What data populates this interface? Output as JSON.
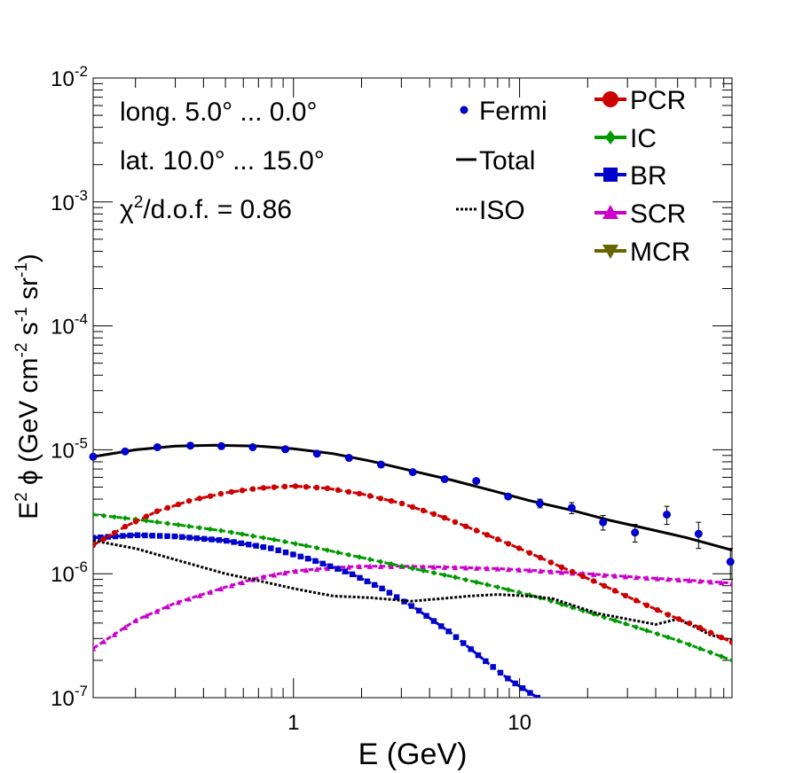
{
  "chart_data": {
    "type": "line",
    "xscale": "log",
    "yscale": "log",
    "xlim": [
      0.13,
      87
    ],
    "ylim": [
      1e-07,
      0.01
    ],
    "xlabel": "E (GeV)",
    "ylabel_base": "E",
    "ylabel_sup1": "2",
    "ylabel_mid": " ϕ (GeV cm",
    "ylabel_sup2": "-2",
    "ylabel_mid2": " s",
    "ylabel_sup3": "-1",
    "ylabel_mid3": " sr",
    "ylabel_sup4": "-1",
    "ylabel_end": ")",
    "x_tick_labels": [
      "1",
      "10"
    ],
    "x_tick_values": [
      1,
      10
    ],
    "y_tick_exponents": [
      "-7",
      "-6",
      "-5",
      "-4",
      "-3",
      "-2"
    ],
    "y_tick_base": "10",
    "y_tick_values": [
      1e-07,
      1e-06,
      1e-05,
      0.0001,
      0.001,
      0.01
    ],
    "annotations": {
      "line1": "long. 5.0° ... 0.0°",
      "line2": "lat. 10.0° ... 15.0°",
      "chi_prefix": "χ",
      "chi_sup": "2",
      "chi_rest": "/d.o.f. = 0.86"
    },
    "legend_left": [
      {
        "label": "Fermi",
        "style": "dot",
        "color": "#0000cc"
      },
      {
        "label": "Total",
        "style": "solid",
        "color": "#000000"
      },
      {
        "label": "ISO",
        "style": "dotted",
        "color": "#000000"
      }
    ],
    "legend_right": [
      {
        "label": "PCR",
        "marker": "circle",
        "color": "#cc0000"
      },
      {
        "label": "IC",
        "marker": "diamond",
        "color": "#009900"
      },
      {
        "label": "BR",
        "marker": "square",
        "color": "#0000cc"
      },
      {
        "label": "SCR",
        "marker": "triangle-up",
        "color": "#cc00cc"
      },
      {
        "label": "MCR",
        "marker": "triangle-down",
        "color": "#666600"
      }
    ],
    "fermi": {
      "x": [
        0.13,
        0.18,
        0.25,
        0.35,
        0.48,
        0.66,
        0.92,
        1.27,
        1.76,
        2.44,
        3.37,
        4.66,
        6.43,
        8.9,
        12.3,
        17.0,
        23.4,
        32.4,
        44.8,
        61.9,
        85.6
      ],
      "y": [
        8.8e-06,
        9.7e-06,
        1.05e-05,
        1.08e-05,
        1.07e-05,
        1.05e-05,
        1.01e-05,
        9.3e-06,
        8.6e-06,
        7.6e-06,
        6.6e-06,
        5.8e-06,
        5.6e-06,
        4.2e-06,
        3.7e-06,
        3.4e-06,
        2.6e-06,
        2.15e-06,
        3e-06,
        2.1e-06,
        1.25e-06
      ],
      "err": [
        3e-07,
        3e-07,
        3e-07,
        3e-07,
        3e-07,
        3e-07,
        3e-07,
        3e-07,
        2e-07,
        2e-07,
        2e-07,
        2e-07,
        2e-07,
        2e-07,
        3e-07,
        3.5e-07,
        3.5e-07,
        3.5e-07,
        5e-07,
        5e-07,
        3.5e-07
      ]
    },
    "series": [
      {
        "name": "Total",
        "color": "#000000",
        "style": "solid",
        "marker": "none",
        "x": [
          0.13,
          0.2,
          0.3,
          0.45,
          0.7,
          1.0,
          1.5,
          2.2,
          3.3,
          5.0,
          7.5,
          11,
          17,
          25,
          37,
          55,
          87
        ],
        "y": [
          8.8e-06,
          1e-05,
          1.07e-05,
          1.09e-05,
          1.07e-05,
          1.02e-05,
          9.3e-06,
          8.1e-06,
          6.8e-06,
          5.7e-06,
          4.7e-06,
          3.9e-06,
          3.25e-06,
          2.7e-06,
          2.3e-06,
          1.95e-06,
          1.55e-06
        ]
      },
      {
        "name": "PCR",
        "color": "#cc0000",
        "style": "dashed",
        "marker": "circle",
        "x": [
          0.13,
          0.18,
          0.25,
          0.35,
          0.5,
          0.7,
          1.0,
          1.4,
          2.0,
          3.0,
          4.5,
          7.0,
          10,
          15,
          22,
          32,
          45,
          60,
          87
        ],
        "y": [
          1.7e-06,
          2.4e-06,
          3.2e-06,
          3.9e-06,
          4.5e-06,
          4.9e-06,
          5.1e-06,
          4.9e-06,
          4.4e-06,
          3.7e-06,
          2.9e-06,
          2.1e-06,
          1.6e-06,
          1.15e-06,
          8.5e-07,
          6.2e-07,
          4.7e-07,
          3.8e-07,
          2.8e-07
        ]
      },
      {
        "name": "IC",
        "color": "#009900",
        "style": "dashed",
        "marker": "diamond",
        "x": [
          0.13,
          0.2,
          0.3,
          0.5,
          0.8,
          1.2,
          2.0,
          3.0,
          5.0,
          8.0,
          12,
          20,
          30,
          50,
          87
        ],
        "y": [
          3e-06,
          2.75e-06,
          2.5e-06,
          2.2e-06,
          1.9e-06,
          1.65e-06,
          1.35e-06,
          1.15e-06,
          9.5e-07,
          7.8e-07,
          6.5e-07,
          4.9e-07,
          3.9e-07,
          2.9e-07,
          2e-07
        ]
      },
      {
        "name": "BR",
        "color": "#0000cc",
        "style": "dashed",
        "marker": "square",
        "x": [
          0.13,
          0.2,
          0.3,
          0.5,
          0.8,
          1.2,
          1.8,
          2.5,
          3.5,
          5.0,
          7.0,
          9.0,
          12
        ],
        "y": [
          1.95e-06,
          2.05e-06,
          2e-06,
          1.85e-06,
          1.6e-06,
          1.3e-06,
          1e-06,
          7.5e-07,
          5.2e-07,
          3.3e-07,
          2e-07,
          1.4e-07,
          1e-07
        ]
      },
      {
        "name": "SCR",
        "color": "#cc00cc",
        "style": "dashed",
        "marker": "triangle-up",
        "x": [
          0.13,
          0.2,
          0.3,
          0.5,
          0.7,
          1.0,
          1.5,
          2.0,
          3.0,
          5.0,
          8.0,
          12,
          20,
          35,
          60,
          87
        ],
        "y": [
          2.5e-07,
          4.2e-07,
          5.8e-07,
          7.8e-07,
          9.3e-07,
          1.05e-06,
          1.12e-06,
          1.15e-06,
          1.15e-06,
          1.13e-06,
          1.1e-06,
          1.06e-06,
          1e-06,
          9.3e-07,
          8.8e-07,
          8.4e-07
        ]
      },
      {
        "name": "ISO",
        "color": "#000000",
        "style": "dotted",
        "marker": "none",
        "x": [
          0.13,
          0.2,
          0.3,
          0.5,
          0.7,
          1.0,
          1.5,
          2.2,
          3.3,
          4.5,
          6.0,
          8.0,
          11,
          14,
          17,
          22,
          30,
          40,
          50,
          60,
          70,
          87
        ],
        "y": [
          1.85e-06,
          1.6e-06,
          1.3e-06,
          1e-06,
          8.8e-07,
          7.6e-07,
          6.6e-07,
          6.4e-07,
          6e-07,
          6.3e-07,
          6.6e-07,
          6.8e-07,
          6.6e-07,
          6.3e-07,
          5.6e-07,
          4.8e-07,
          4.3e-07,
          3.9e-07,
          4.3e-07,
          3.7e-07,
          3.2e-07,
          2.9e-07
        ]
      }
    ]
  }
}
